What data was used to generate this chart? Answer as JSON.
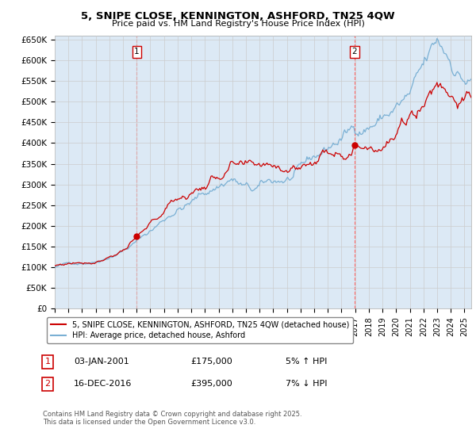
{
  "title_line1": "5, SNIPE CLOSE, KENNINGTON, ASHFORD, TN25 4QW",
  "title_line2": "Price paid vs. HM Land Registry's House Price Index (HPI)",
  "ylim": [
    0,
    660000
  ],
  "yticks": [
    0,
    50000,
    100000,
    150000,
    200000,
    250000,
    300000,
    350000,
    400000,
    450000,
    500000,
    550000,
    600000,
    650000
  ],
  "ytick_labels": [
    "£0",
    "£50K",
    "£100K",
    "£150K",
    "£200K",
    "£250K",
    "£300K",
    "£350K",
    "£400K",
    "£450K",
    "£500K",
    "£550K",
    "£600K",
    "£650K"
  ],
  "xlim_start": 1995.0,
  "xlim_end": 2025.5,
  "sale1_x": 2001.01,
  "sale1_y": 175000,
  "sale1_label": "1",
  "sale2_x": 2016.96,
  "sale2_y": 395000,
  "sale2_label": "2",
  "vline1_x": 2001.01,
  "vline2_x": 2016.96,
  "legend_house_label": "5, SNIPE CLOSE, KENNINGTON, ASHFORD, TN25 4QW (detached house)",
  "legend_hpi_label": "HPI: Average price, detached house, Ashford",
  "annotation1_label": "1",
  "annotation1_date": "03-JAN-2001",
  "annotation1_price": "£175,000",
  "annotation1_pct": "5% ↑ HPI",
  "annotation2_label": "2",
  "annotation2_date": "16-DEC-2016",
  "annotation2_price": "£395,000",
  "annotation2_pct": "7% ↓ HPI",
  "copyright_text": "Contains HM Land Registry data © Crown copyright and database right 2025.\nThis data is licensed under the Open Government Licence v3.0.",
  "house_color": "#cc0000",
  "hpi_color": "#7ab0d4",
  "vline_color": "#ff6666",
  "grid_color": "#cccccc",
  "chart_bg_color": "#dce9f5",
  "background_color": "#ffffff"
}
